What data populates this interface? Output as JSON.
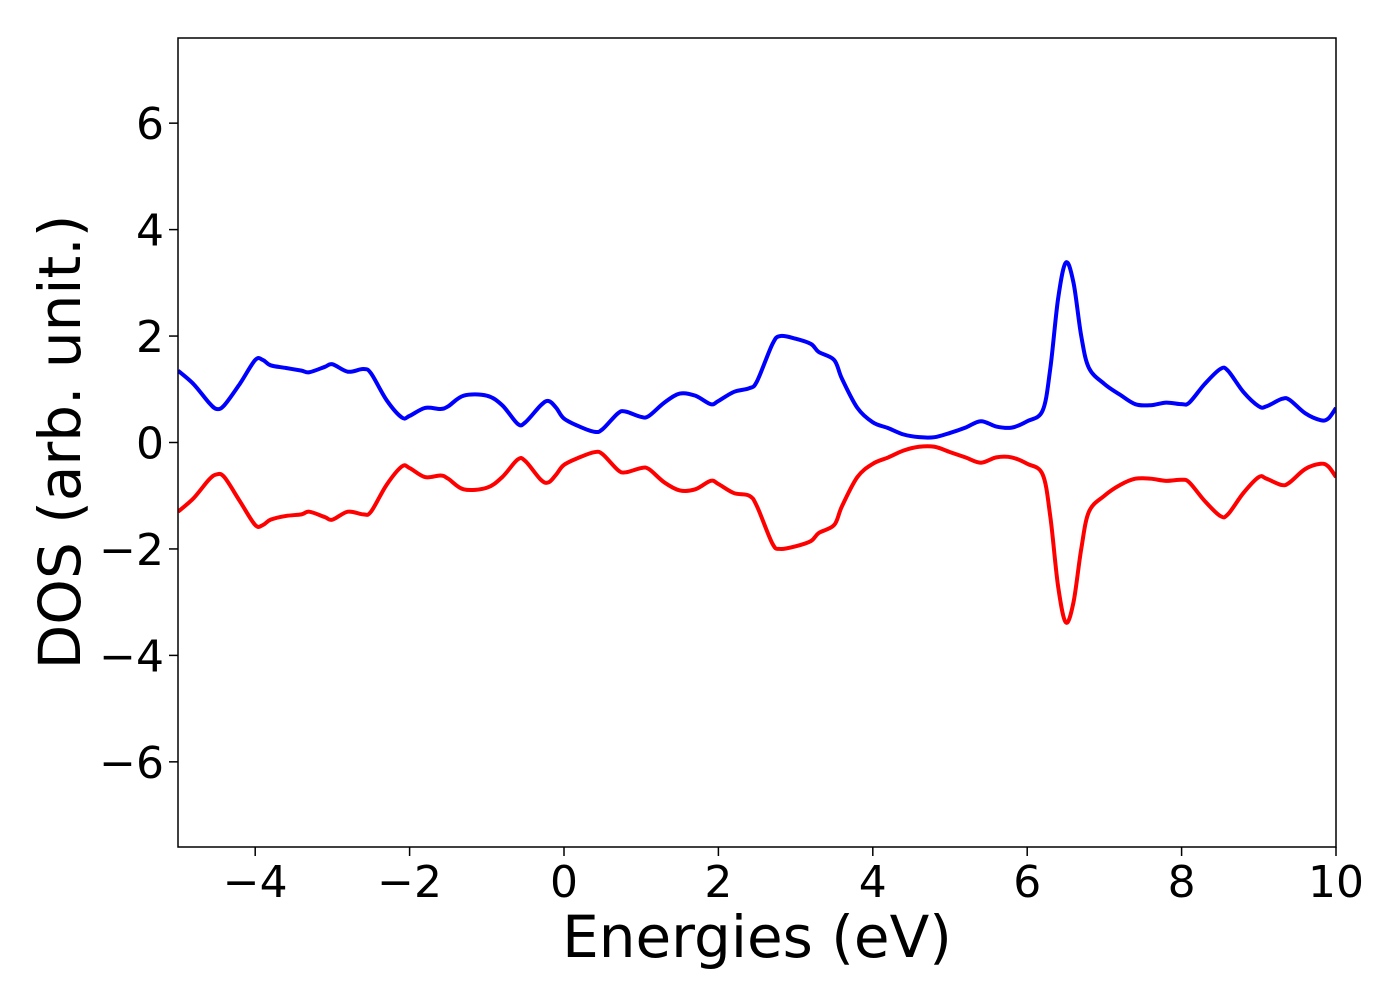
{
  "chart_data": {
    "type": "line",
    "xlabel": "Energies (eV)",
    "ylabel": "DOS (arb. unit.)",
    "x": [
      -5,
      -4.8,
      -4.6,
      -4.5,
      -4.4,
      -4.2,
      -4.0,
      -3.9,
      -3.8,
      -3.6,
      -3.4,
      -3.3,
      -3.1,
      -3.0,
      -2.8,
      -2.6,
      -2.5,
      -2.3,
      -2.1,
      -2.0,
      -1.8,
      -1.6,
      -1.5,
      -1.3,
      -1.0,
      -0.8,
      -0.6,
      -0.5,
      -0.3,
      -0.2,
      -0.1,
      0.0,
      0.2,
      0.4,
      0.5,
      0.7,
      0.8,
      1.0,
      1.1,
      1.3,
      1.5,
      1.7,
      1.9,
      2.0,
      2.2,
      2.4,
      2.5,
      2.7,
      2.8,
      3.0,
      3.2,
      3.3,
      3.5,
      3.6,
      3.8,
      4.0,
      4.2,
      4.4,
      4.6,
      4.8,
      5.0,
      5.2,
      5.4,
      5.6,
      5.8,
      6.0,
      6.2,
      6.3,
      6.4,
      6.5,
      6.6,
      6.7,
      6.8,
      7.0,
      7.2,
      7.4,
      7.6,
      7.8,
      8.0,
      8.1,
      8.3,
      8.5,
      8.6,
      8.8,
      9.0,
      9.1,
      9.3,
      9.4,
      9.6,
      9.8,
      9.9,
      10.0
    ],
    "series": [
      {
        "color": "#0000ff",
        "values": [
          1.35,
          1.1,
          0.75,
          0.63,
          0.7,
          1.1,
          1.55,
          1.55,
          1.45,
          1.4,
          1.35,
          1.32,
          1.42,
          1.47,
          1.33,
          1.38,
          1.3,
          0.8,
          0.47,
          0.5,
          0.65,
          0.63,
          0.68,
          0.88,
          0.88,
          0.7,
          0.35,
          0.38,
          0.7,
          0.78,
          0.65,
          0.45,
          0.3,
          0.2,
          0.25,
          0.55,
          0.58,
          0.48,
          0.5,
          0.75,
          0.92,
          0.88,
          0.72,
          0.78,
          0.95,
          1.02,
          1.15,
          1.85,
          2.0,
          1.95,
          1.85,
          1.7,
          1.55,
          1.2,
          0.65,
          0.38,
          0.27,
          0.15,
          0.1,
          0.1,
          0.18,
          0.28,
          0.4,
          0.3,
          0.28,
          0.4,
          0.6,
          1.4,
          2.7,
          3.38,
          3.0,
          2.0,
          1.4,
          1.1,
          0.9,
          0.72,
          0.7,
          0.75,
          0.72,
          0.75,
          1.1,
          1.38,
          1.35,
          0.95,
          0.68,
          0.68,
          0.82,
          0.8,
          0.55,
          0.42,
          0.45,
          0.65
        ]
      },
      {
        "color": "#ff0000",
        "values": [
          -1.3,
          -1.05,
          -0.7,
          -0.6,
          -0.65,
          -1.1,
          -1.55,
          -1.55,
          -1.45,
          -1.38,
          -1.35,
          -1.3,
          -1.4,
          -1.45,
          -1.3,
          -1.35,
          -1.3,
          -0.8,
          -0.45,
          -0.48,
          -0.65,
          -0.62,
          -0.68,
          -0.88,
          -0.85,
          -0.65,
          -0.32,
          -0.35,
          -0.7,
          -0.75,
          -0.6,
          -0.42,
          -0.28,
          -0.18,
          -0.22,
          -0.52,
          -0.56,
          -0.48,
          -0.5,
          -0.75,
          -0.9,
          -0.88,
          -0.72,
          -0.78,
          -0.95,
          -1.0,
          -1.2,
          -1.9,
          -2.0,
          -1.95,
          -1.85,
          -1.7,
          -1.55,
          -1.2,
          -0.65,
          -0.4,
          -0.28,
          -0.15,
          -0.08,
          -0.08,
          -0.18,
          -0.28,
          -0.38,
          -0.28,
          -0.28,
          -0.4,
          -0.6,
          -1.4,
          -2.7,
          -3.38,
          -3.0,
          -2.0,
          -1.3,
          -1.0,
          -0.8,
          -0.68,
          -0.68,
          -0.72,
          -0.7,
          -0.75,
          -1.1,
          -1.38,
          -1.35,
          -0.95,
          -0.65,
          -0.68,
          -0.8,
          -0.75,
          -0.5,
          -0.4,
          -0.45,
          -0.65
        ]
      }
    ],
    "xlim": [
      -5,
      10
    ],
    "ylim": [
      -7.6,
      7.6
    ],
    "xticks": [
      {
        "value": -4,
        "label": "−4"
      },
      {
        "value": -2,
        "label": "−2"
      },
      0,
      2,
      4,
      6,
      8,
      10
    ],
    "yticks": [
      {
        "value": -6,
        "label": "−6"
      },
      {
        "value": -4,
        "label": "−4"
      },
      {
        "value": -2,
        "label": "−2"
      },
      0,
      2,
      4,
      6
    ]
  }
}
